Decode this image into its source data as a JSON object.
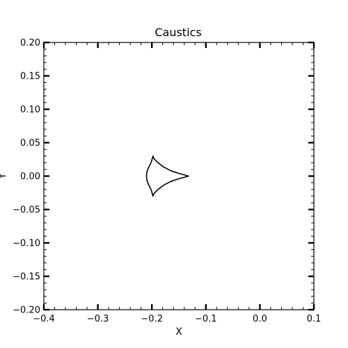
{
  "chart_data": {
    "type": "line",
    "title": "Caustics",
    "xlabel": "X",
    "ylabel": "Y",
    "xlim": [
      -0.4,
      0.1
    ],
    "ylim": [
      -0.2,
      0.2
    ],
    "xticks": [
      -0.4,
      -0.3,
      -0.2,
      -0.1,
      0.0,
      0.1
    ],
    "xtick_labels": [
      "−0.4",
      "−0.3",
      "−0.2",
      "−0.1",
      "0.0",
      "0.1"
    ],
    "yticks": [
      0.2,
      0.15,
      0.1,
      0.05,
      0.0,
      -0.05,
      -0.1,
      -0.15,
      -0.2
    ],
    "ytick_labels": [
      "0.20",
      "0.15",
      "0.10",
      "0.05",
      "0.00",
      "−0.05",
      "−0.10",
      "−0.15",
      "−0.20"
    ],
    "x_minor_step": 0.02,
    "y_minor_step": 0.01,
    "grid": false,
    "line_color": "#000000",
    "series": [
      {
        "x": [
          -0.198,
          -0.196,
          -0.19,
          -0.179,
          -0.165,
          -0.15,
          -0.132,
          -0.15,
          -0.165,
          -0.179,
          -0.19,
          -0.196,
          -0.198,
          -0.201,
          -0.206,
          -0.209,
          -0.21,
          -0.209,
          -0.206,
          -0.201,
          -0.198
        ],
        "y": [
          0.03,
          0.026,
          0.021,
          0.014,
          0.008,
          0.004,
          0.0,
          -0.004,
          -0.008,
          -0.014,
          -0.021,
          -0.026,
          -0.03,
          -0.021,
          -0.013,
          -0.007,
          0.0,
          0.007,
          0.013,
          0.021,
          0.03
        ]
      }
    ]
  }
}
